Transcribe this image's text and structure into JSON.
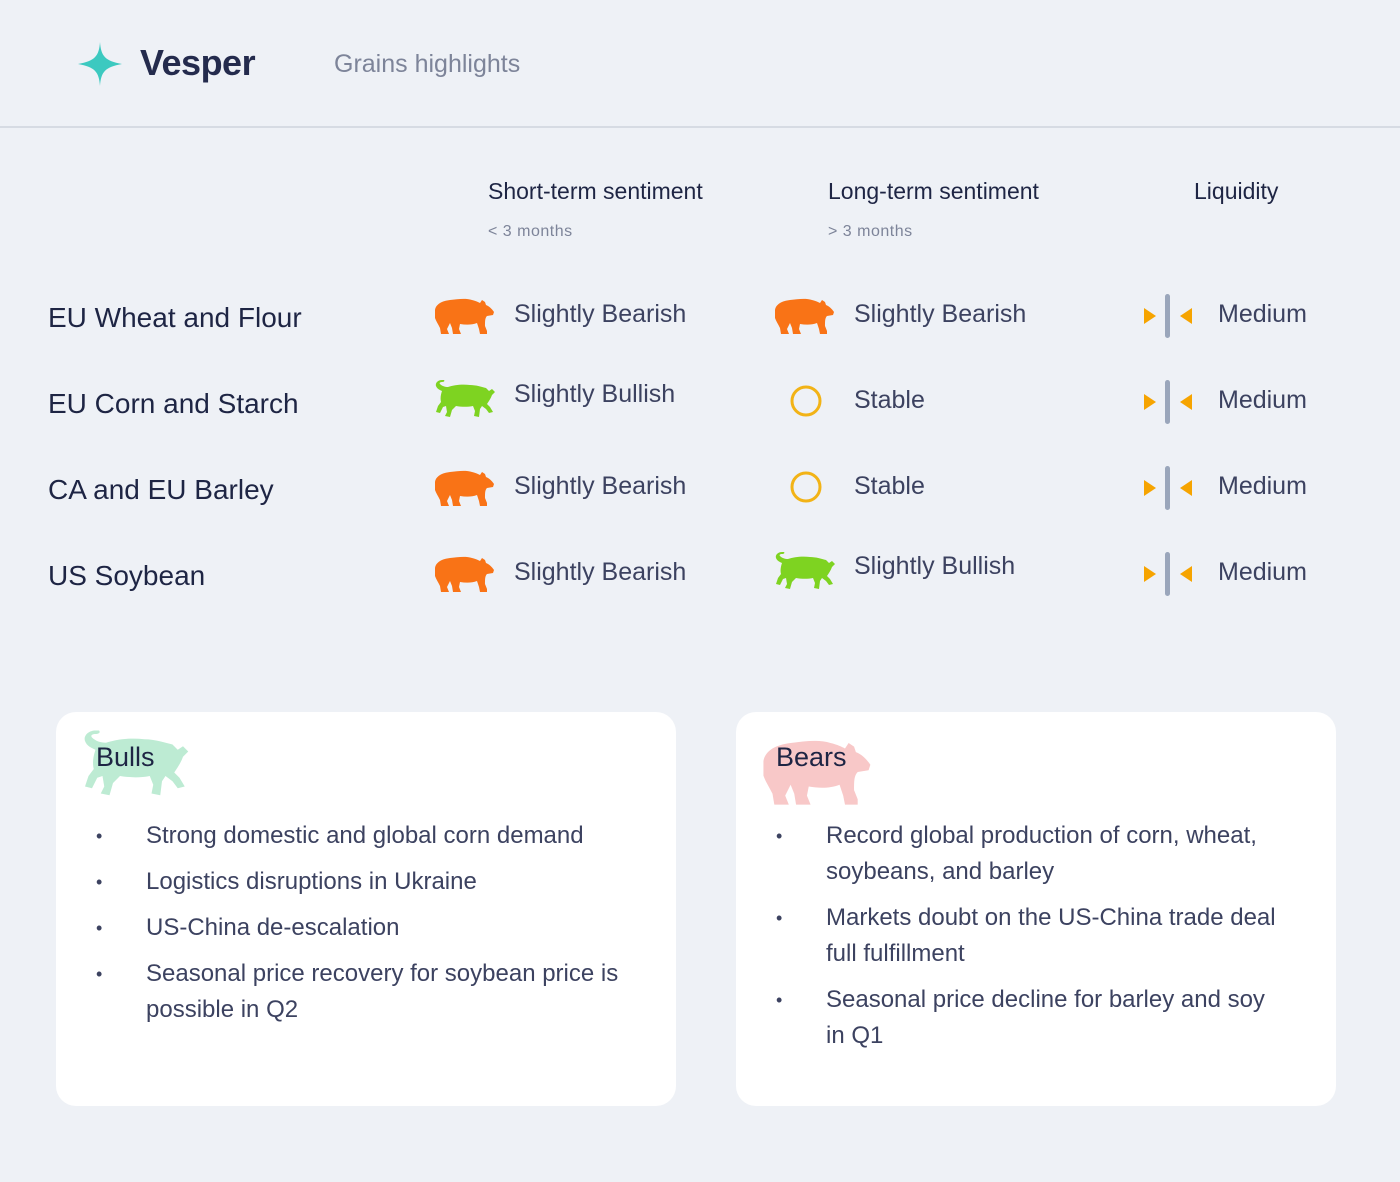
{
  "brand": {
    "name": "Vesper",
    "page_title": "Grains highlights"
  },
  "columns": {
    "short": {
      "label": "Short-term sentiment",
      "sub": "< 3 months"
    },
    "long": {
      "label": "Long-term sentiment",
      "sub": "> 3 months"
    },
    "liquidity": {
      "label": "Liquidity"
    }
  },
  "rows": [
    {
      "name": "EU Wheat and Flour",
      "short": {
        "icon": "bear-icon",
        "label": "Slightly Bearish"
      },
      "long": {
        "icon": "bear-icon",
        "label": "Slightly Bearish"
      },
      "liquidity": {
        "icon": "liquidity-medium-icon",
        "label": "Medium"
      }
    },
    {
      "name": "EU Corn and Starch",
      "short": {
        "icon": "bull-icon",
        "label": "Slightly Bullish"
      },
      "long": {
        "icon": "stable-circle-icon",
        "label": "Stable"
      },
      "liquidity": {
        "icon": "liquidity-medium-icon",
        "label": "Medium"
      }
    },
    {
      "name": "CA and EU Barley",
      "short": {
        "icon": "bear-icon",
        "label": "Slightly Bearish"
      },
      "long": {
        "icon": "stable-circle-icon",
        "label": "Stable"
      },
      "liquidity": {
        "icon": "liquidity-medium-icon",
        "label": "Medium"
      }
    },
    {
      "name": "US Soybean",
      "short": {
        "icon": "bear-icon",
        "label": "Slightly Bearish"
      },
      "long": {
        "icon": "bull-icon",
        "label": "Slightly Bullish"
      },
      "liquidity": {
        "icon": "liquidity-medium-icon",
        "label": "Medium"
      }
    }
  ],
  "bulls": {
    "title": "Bulls",
    "items": [
      "Strong domestic and global corn demand",
      "Logistics disruptions in Ukraine",
      "US-China de-escalation",
      "Seasonal price recovery for soybean price is possible in Q2"
    ]
  },
  "bears": {
    "title": "Bears",
    "items": [
      "Record global production of corn, wheat, soybeans, and barley",
      "Markets doubt on the US-China trade deal full fulfillment",
      "Seasonal price decline for barley and soy in Q1"
    ]
  },
  "colors": {
    "bear": "#f97316",
    "bull": "#7ed321",
    "stable": "#f2b316",
    "liquidity_arrow": "#f6a400",
    "liquidity_bar": "#9aa6bb",
    "logo": "#3cc9c0",
    "bull_watermark": "#bdebd3",
    "bear_watermark": "#f8c8c8"
  }
}
